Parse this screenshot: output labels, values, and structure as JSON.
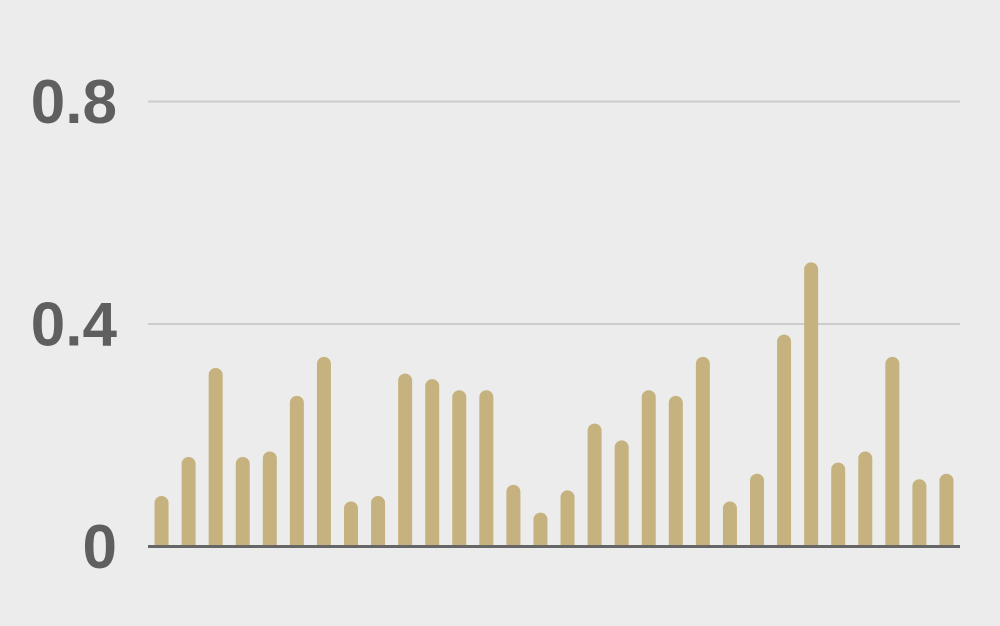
{
  "chart_data": {
    "type": "bar",
    "title": "",
    "xlabel": "",
    "ylabel": "",
    "ylim": [
      0,
      0.8
    ],
    "yticks": [
      "0",
      "0.4",
      "0.8"
    ],
    "ytick_values": [
      0,
      0.4,
      0.8
    ],
    "grid": "horizontal",
    "bar_color": "#c5b27e",
    "values": [
      0.09,
      0.16,
      0.32,
      0.16,
      0.17,
      0.27,
      0.34,
      0.08,
      0.09,
      0.31,
      0.3,
      0.28,
      0.28,
      0.11,
      0.06,
      0.1,
      0.22,
      0.19,
      0.28,
      0.27,
      0.34,
      0.08,
      0.13,
      0.38,
      0.51,
      0.15,
      0.17,
      0.34,
      0.12,
      0.13
    ]
  }
}
